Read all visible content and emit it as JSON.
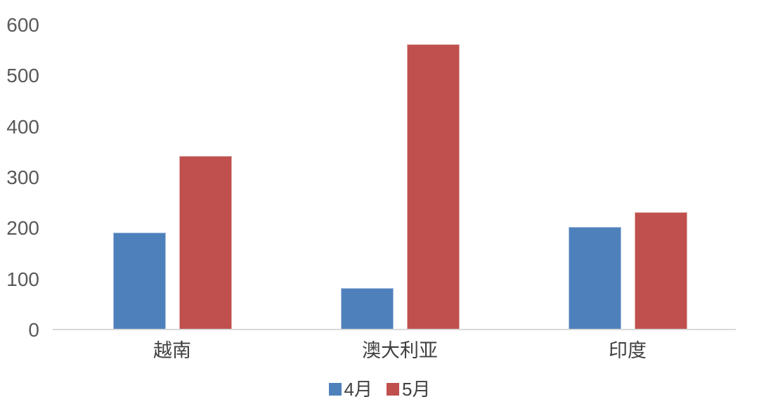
{
  "chart_data": {
    "type": "bar",
    "categories": [
      "越南",
      "澳大利亚",
      "印度"
    ],
    "series": [
      {
        "name": "4月",
        "color": "#4E81BC",
        "edge_color": "#a8c0dd",
        "values": [
          190,
          80,
          200
        ]
      },
      {
        "name": "5月",
        "color": "#C0504D",
        "edge_color": "#ddadab",
        "values": [
          340,
          560,
          230
        ]
      }
    ],
    "title": "",
    "xlabel": "",
    "ylabel": "",
    "ylim": [
      0,
      600
    ],
    "yticks": [
      0,
      100,
      200,
      300,
      400,
      500,
      600
    ],
    "grid": false,
    "legend_position": "bottom"
  },
  "styles": {
    "background": "#ffffff",
    "tick_label_color": "#595959",
    "category_label_color": "#3f3f3f",
    "legend_label_color": "#404040",
    "axis_line_color": "#d9d9d9"
  }
}
